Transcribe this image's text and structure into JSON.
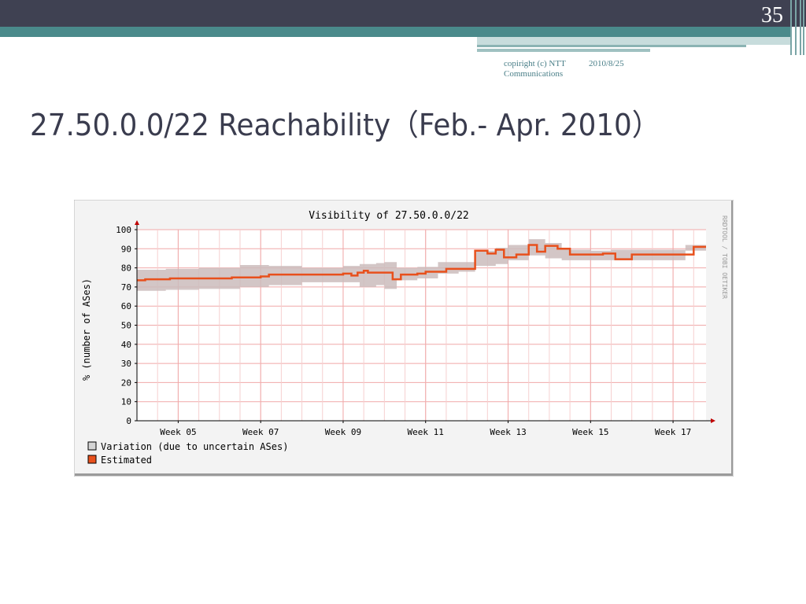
{
  "slide": {
    "page_number": "35",
    "footer_copyright": "copiright (c) NTT Communications",
    "footer_date": "2010/8/25",
    "title": "27.50.0.0/22 Reachability（Feb.- Apr. 2010）"
  },
  "colors": {
    "topbar": "#3f4152",
    "accent": "#4a8a8b",
    "series_estimated": "#e8501c",
    "variation_band": "#cbbcbc",
    "grid": "#f0a8a8"
  },
  "chart_data": {
    "type": "line",
    "title": "Visibility of 27.50.0.0/22",
    "xlabel": "",
    "ylabel": "% (number of ASes)",
    "watermark": "RRDTOOL / TOBI OETIKER",
    "ylim": [
      0,
      100
    ],
    "yticks": [
      0,
      10,
      20,
      30,
      40,
      50,
      60,
      70,
      80,
      90,
      100
    ],
    "xlim": [
      4.0,
      17.8
    ],
    "xticks": [
      5,
      7,
      9,
      11,
      13,
      15,
      17
    ],
    "xtick_labels": [
      "Week 05",
      "Week 07",
      "Week 09",
      "Week 11",
      "Week 13",
      "Week 15",
      "Week 17"
    ],
    "grid": true,
    "legend_position": "bottom-left",
    "legend": [
      "Variation (due to uncertain ASes)",
      "Estimated"
    ],
    "series": [
      {
        "name": "Estimated",
        "x": [
          4.0,
          4.2,
          4.8,
          5.5,
          6.3,
          7.0,
          7.2,
          7.5,
          8.0,
          8.5,
          9.0,
          9.2,
          9.35,
          9.5,
          9.6,
          9.8,
          10.0,
          10.2,
          10.4,
          10.8,
          11.0,
          11.5,
          11.8,
          12.2,
          12.5,
          12.7,
          12.9,
          13.2,
          13.5,
          13.7,
          13.9,
          14.2,
          14.5,
          15.0,
          15.3,
          15.6,
          16.0,
          16.5,
          16.8,
          17.0,
          17.5,
          17.8
        ],
        "y": [
          73.5,
          74,
          74.5,
          74.5,
          75,
          75.5,
          76.5,
          76.5,
          76.5,
          76.5,
          77,
          76,
          77.5,
          78.5,
          77.5,
          77.5,
          77.5,
          74,
          76.5,
          77,
          78,
          79.5,
          79.5,
          89,
          87.5,
          89.5,
          85.5,
          87,
          92,
          88.5,
          91.5,
          90,
          87,
          87,
          87.5,
          84.5,
          87,
          87,
          87,
          87,
          91,
          91
        ]
      },
      {
        "name": "Variation (due to uncertain ASes)",
        "x": [
          4.0,
          4.7,
          5.5,
          6.5,
          7.2,
          8.0,
          9.0,
          9.4,
          9.8,
          10.0,
          10.3,
          10.8,
          11.3,
          11.8,
          12.2,
          12.7,
          13.0,
          13.5,
          13.9,
          14.3,
          15.0,
          15.5,
          16.0,
          16.8,
          17.3,
          17.8
        ],
        "upper": [
          79,
          79.5,
          80,
          81.5,
          81,
          80,
          81,
          82,
          82.5,
          83,
          80,
          80.5,
          83,
          83,
          89,
          90.5,
          92,
          95,
          93,
          89.5,
          89,
          89.5,
          89.5,
          89.5,
          92,
          92
        ],
        "lower": [
          68,
          68.5,
          69,
          70,
          71,
          72.5,
          72.5,
          70,
          71,
          69,
          73.5,
          74.5,
          77,
          78,
          81,
          82,
          84,
          86.5,
          85,
          84,
          84,
          84,
          84,
          84,
          89,
          90
        ]
      }
    ]
  }
}
